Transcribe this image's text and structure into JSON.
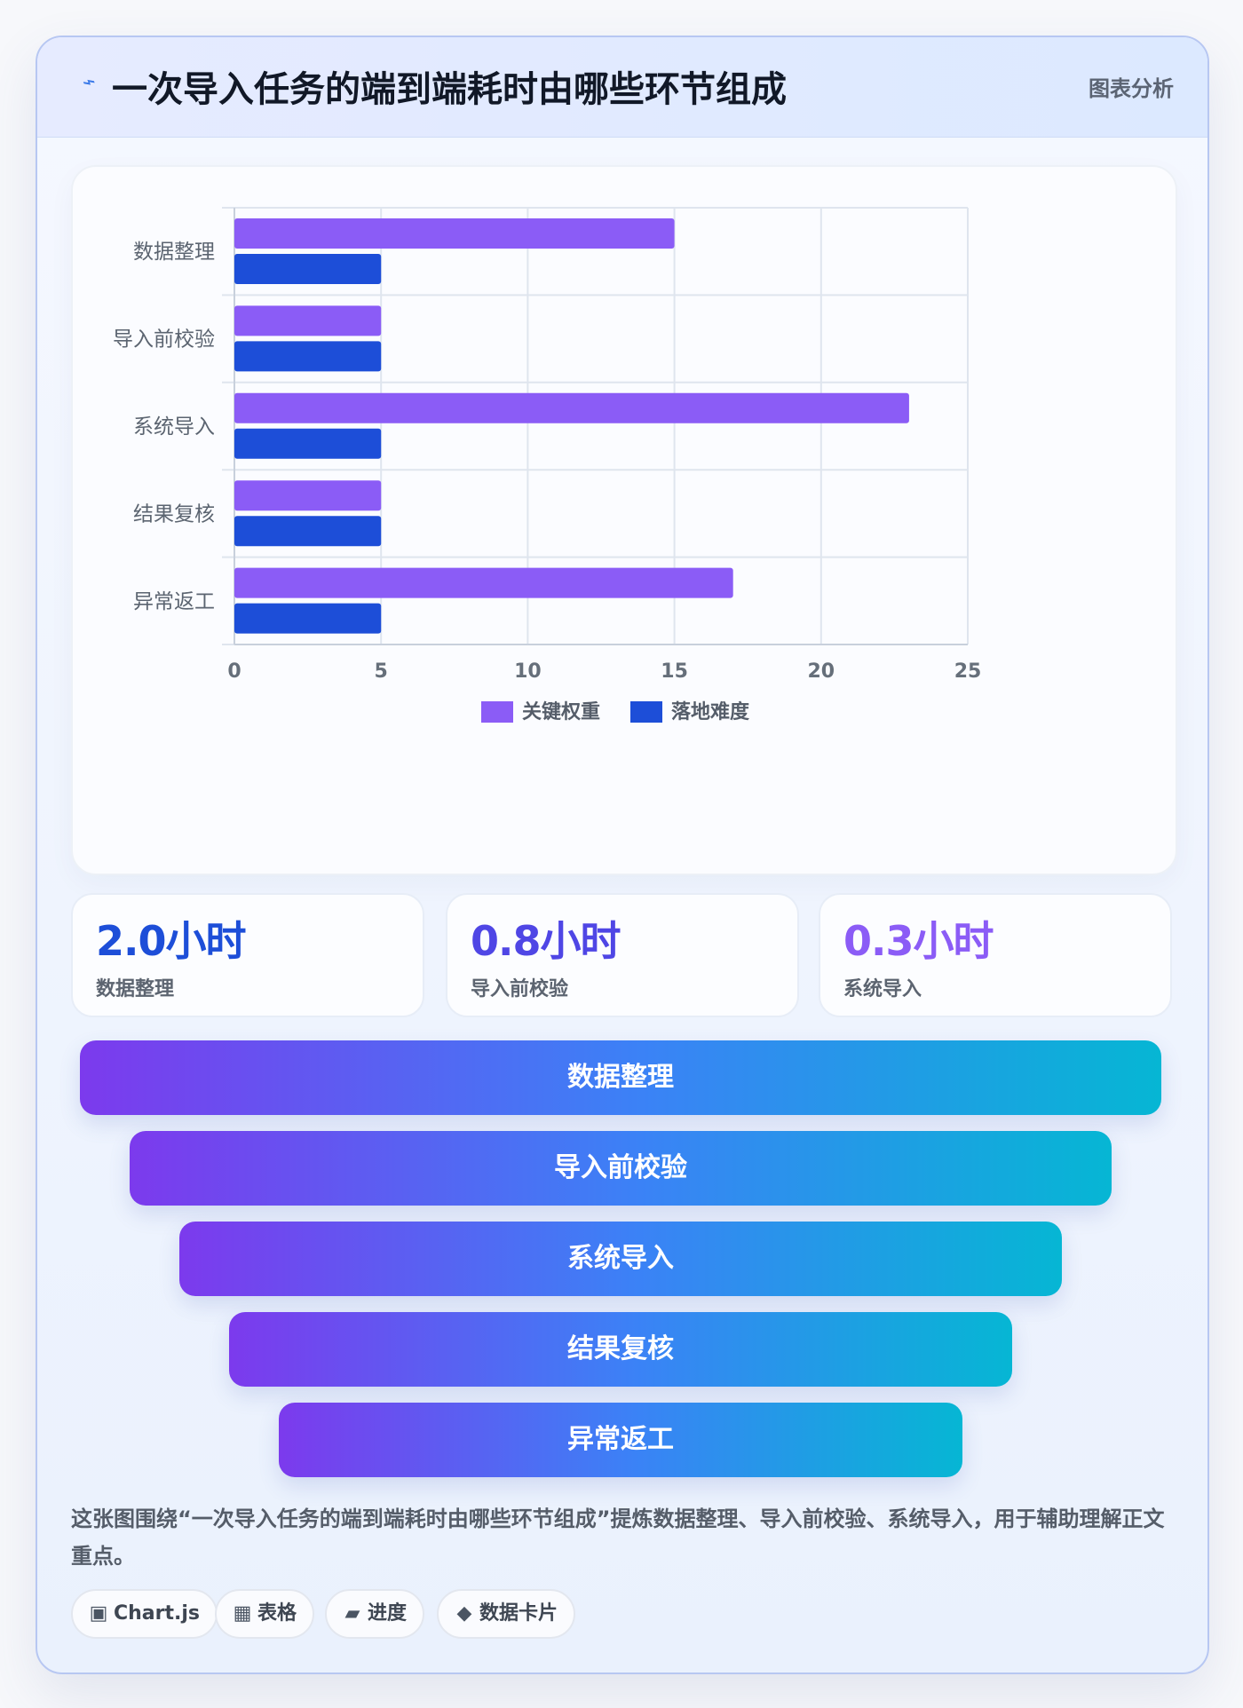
{
  "header": {
    "icon": "lightning-icon",
    "title": "一次导入任务的端到端耗时由哪些环节组成",
    "tag": "图表分析"
  },
  "chart_data": {
    "type": "bar",
    "orientation": "horizontal",
    "categories": [
      "数据整理",
      "导入前校验",
      "系统导入",
      "结果复核",
      "异常返工"
    ],
    "series": [
      {
        "name": "关键权重",
        "values": [
          15,
          5,
          23,
          5,
          17
        ],
        "color": "#8b5cf6"
      },
      {
        "name": "落地难度",
        "values": [
          5,
          5,
          5,
          5,
          5
        ],
        "color": "#1d4ed8"
      }
    ],
    "xlim": [
      0,
      25
    ],
    "ticks": [
      0,
      5,
      10,
      15,
      20,
      25
    ],
    "grid": true,
    "legend_position": "bottom-center"
  },
  "stats": [
    {
      "value": "2.0小时",
      "label": "数据整理",
      "color": "#1d4ed8"
    },
    {
      "value": "0.8小时",
      "label": "导入前校验",
      "color": "#4f46e5"
    },
    {
      "value": "0.3小时",
      "label": "系统导入",
      "color": "#8b5cf6"
    }
  ],
  "funnel": {
    "items": [
      "数据整理",
      "导入前校验",
      "系统导入",
      "结果复核",
      "异常返工"
    ]
  },
  "description": "这张图围绕“一次导入任务的端到端耗时由哪些环节组成”提炼数据整理、导入前校验、系统导入，用于辅助理解正文重点。",
  "chips": [
    {
      "icon": "chart-icon",
      "label": "Chart.js"
    },
    {
      "icon": "table-icon",
      "label": "表格"
    },
    {
      "icon": "progress-icon",
      "label": "进度"
    },
    {
      "icon": "data-card-icon",
      "label": "数据卡片"
    }
  ]
}
